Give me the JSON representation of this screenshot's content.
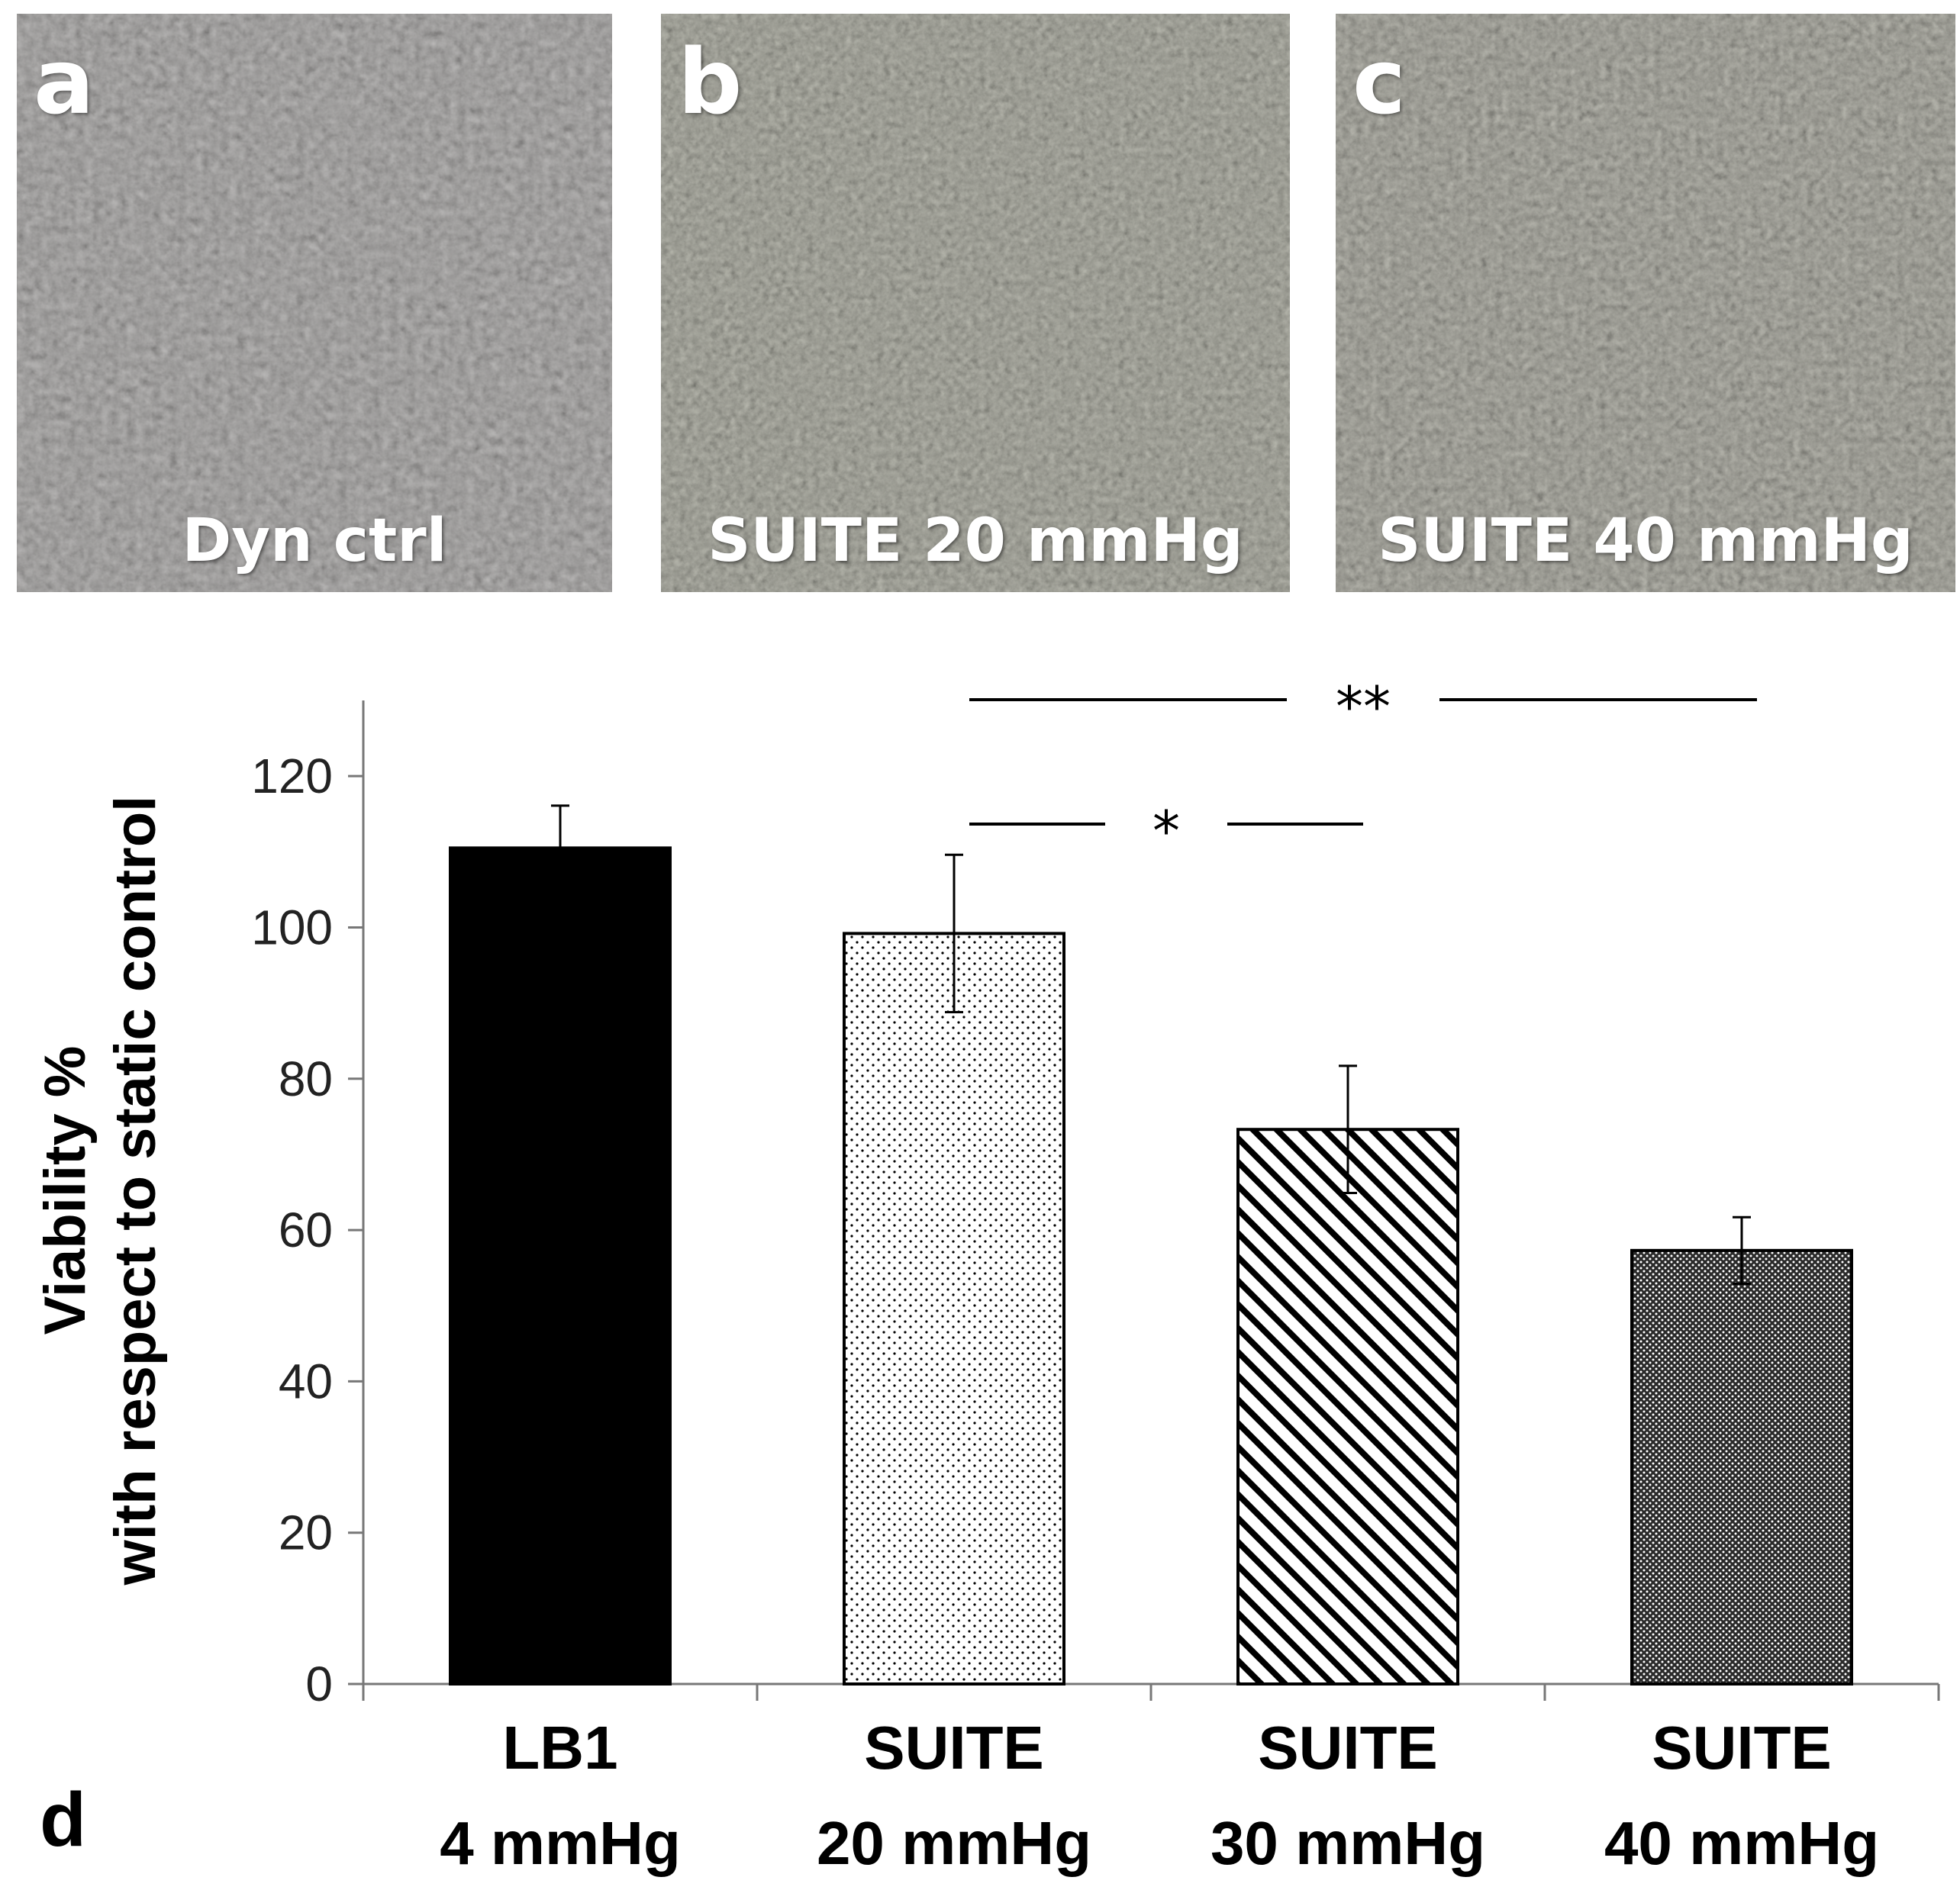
{
  "panels": [
    {
      "letter": "a",
      "caption": "Dyn ctrl",
      "tint": "#7d7a78"
    },
    {
      "letter": "b",
      "caption": "SUITE 20 mmHg",
      "tint": "#6f7066"
    },
    {
      "letter": "c",
      "caption": "SUITE 40 mmHg",
      "tint": "#6e6d66"
    }
  ],
  "chart_panel_letter": "d",
  "chart_data": {
    "type": "bar",
    "ylabel_line1": "Viability %",
    "ylabel_line2": "with respect to static control",
    "ylim": [
      0,
      130
    ],
    "yticks": [
      "0",
      "20",
      "40",
      "60",
      "80",
      "100",
      "120"
    ],
    "grid": false,
    "categories": [
      {
        "line1": "LB1",
        "line2": "4 mmHg"
      },
      {
        "line1": "SUITE",
        "line2": "20 mmHg"
      },
      {
        "line1": "SUITE",
        "line2": "30 mmHg"
      },
      {
        "line1": "SUITE",
        "line2": "40 mmHg"
      }
    ],
    "values": [
      110.5,
      99.2,
      73.3,
      57.3
    ],
    "errors": [
      5.6,
      10.4,
      8.4,
      4.4
    ],
    "fills": [
      "solid-black",
      "sparse-dots",
      "diagonal-stripes",
      "dense-dots"
    ],
    "significance": [
      {
        "from": 1,
        "to": 2,
        "label": "*"
      },
      {
        "from": 1,
        "to": 3,
        "label": "**"
      }
    ]
  }
}
